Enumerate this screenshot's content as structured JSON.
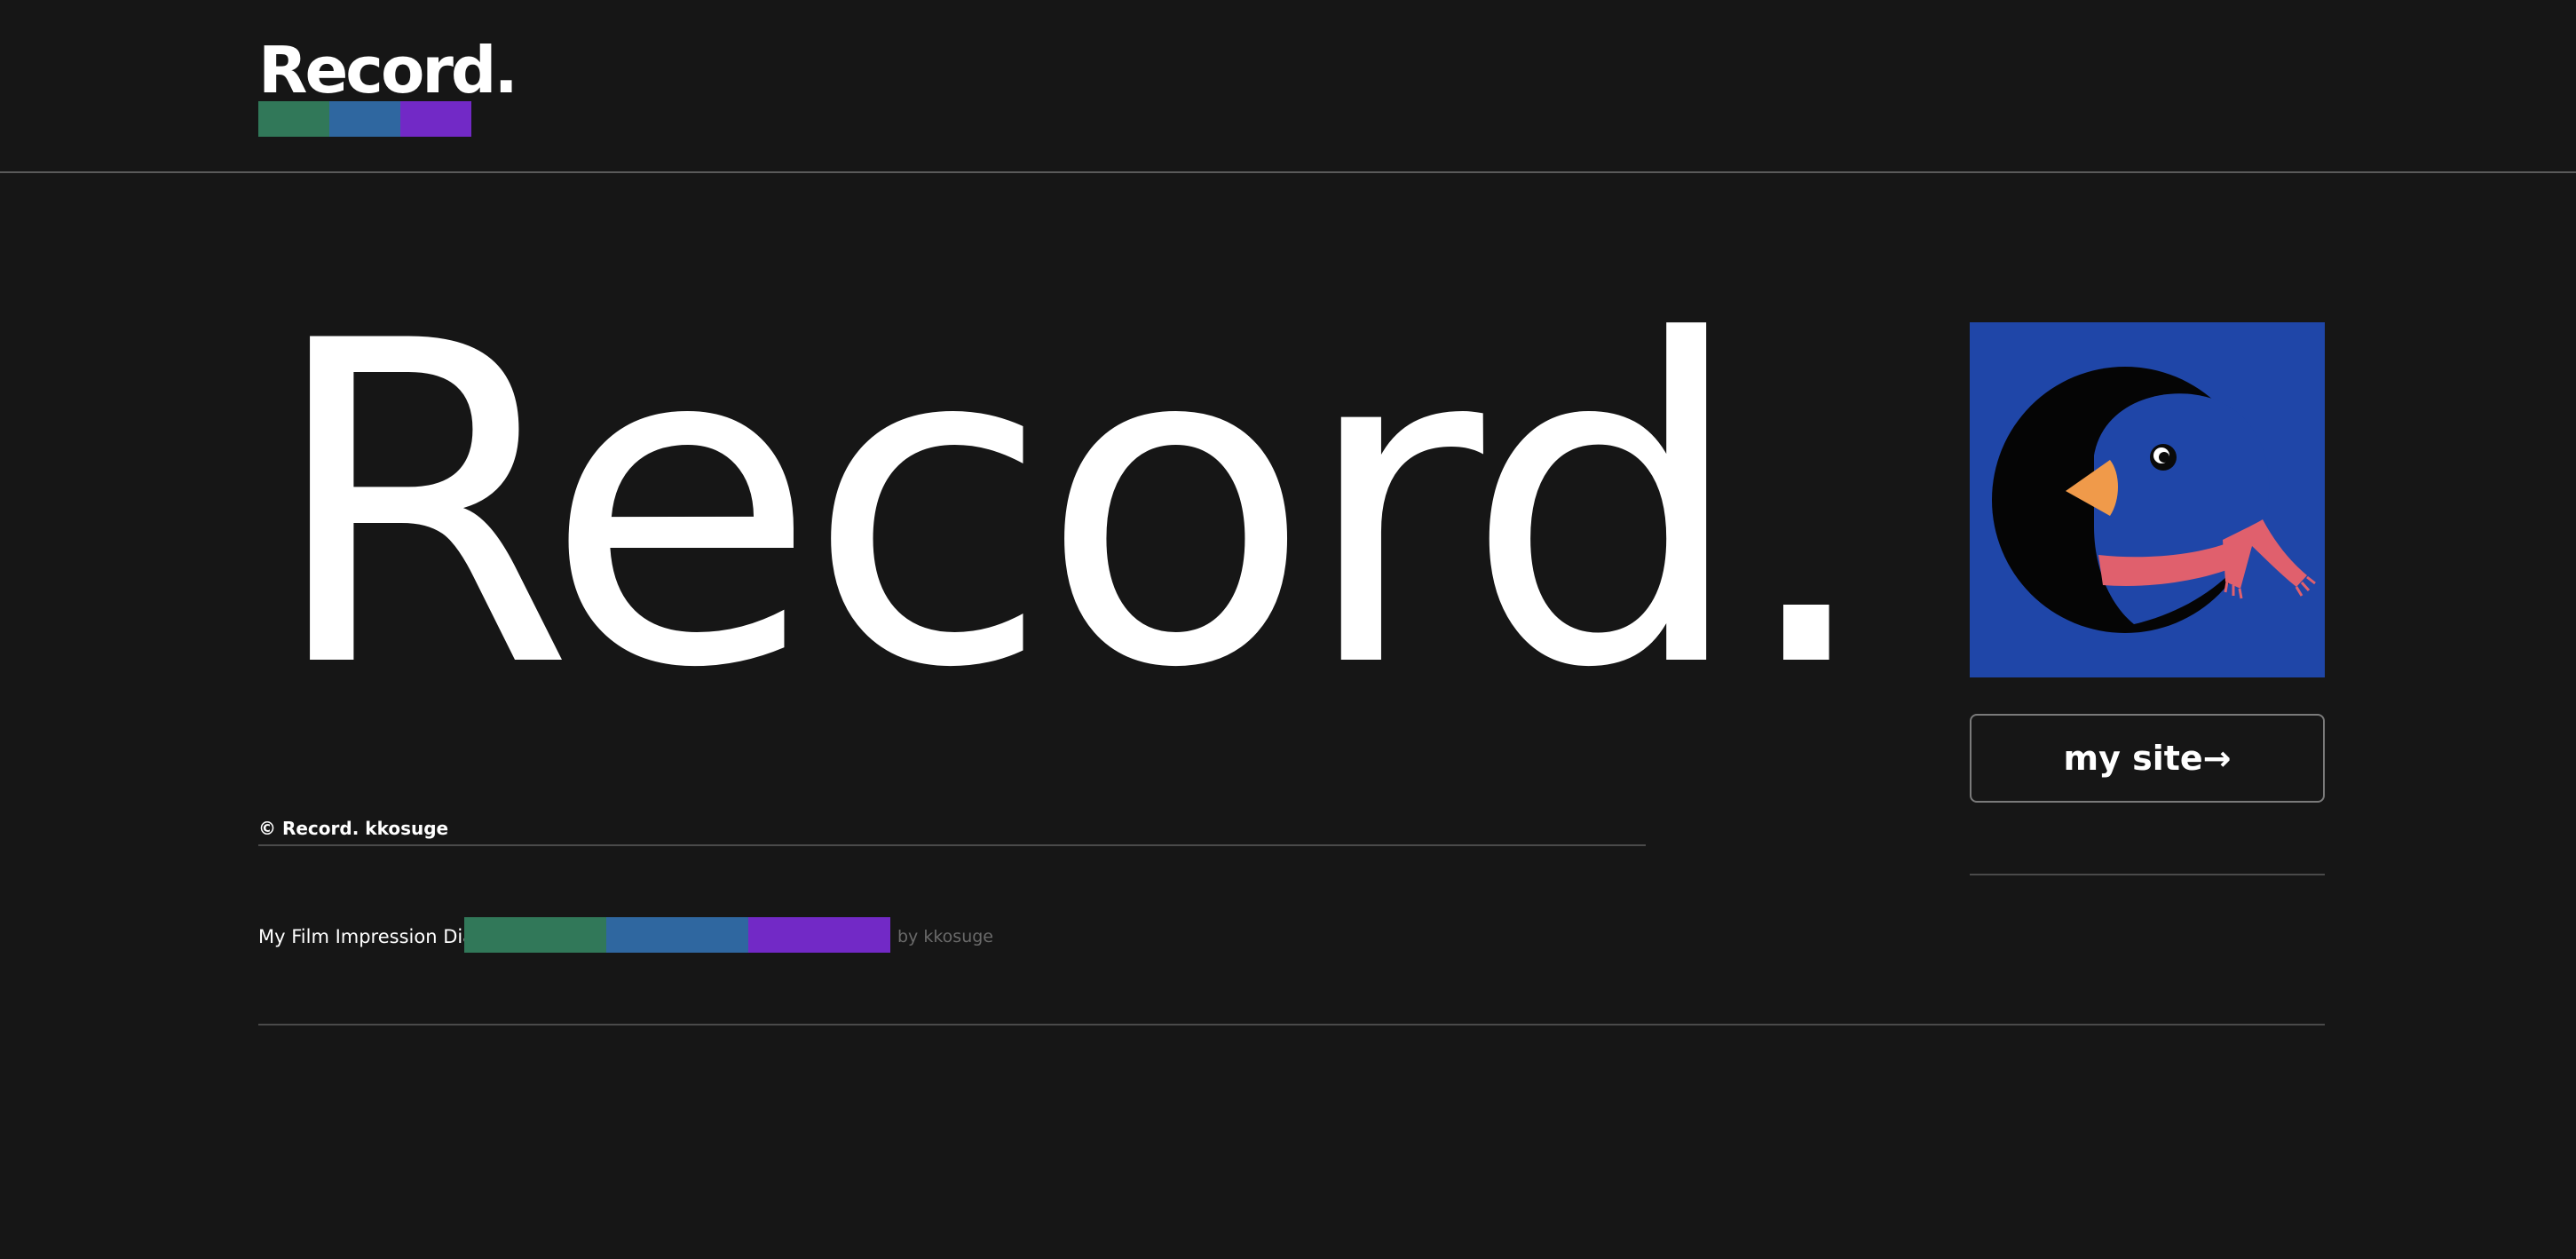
{
  "brand": {
    "logo_text": "Record.",
    "stripe_colors": [
      "#317859",
      "#2f67a0",
      "#7229c6"
    ]
  },
  "hero": {
    "title": "Record."
  },
  "copyright": "© Record. kkosuge",
  "side": {
    "avatar_icon": "penguin-avatar",
    "site_button_label": "my site→"
  },
  "footer": {
    "title": "My Film Impression Diary",
    "byline": "by kkosuge"
  },
  "colors": {
    "background": "#161616",
    "avatar_background": "#1f46a8"
  }
}
